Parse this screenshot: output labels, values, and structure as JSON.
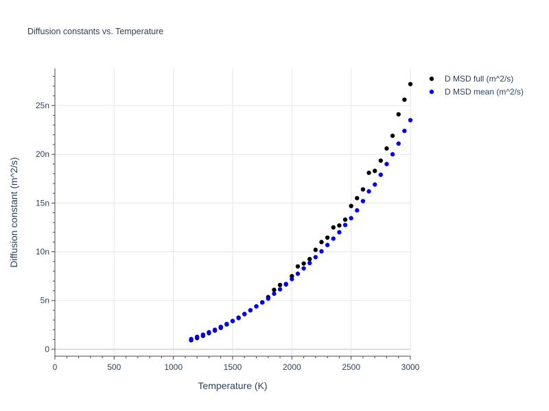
{
  "chart_data": {
    "type": "scatter",
    "title": "Diffusion constants vs. Temperature",
    "xlabel": "Temperature (K)",
    "ylabel": "Diffusion constant (m^2/s)",
    "xlim": [
      0,
      3000
    ],
    "ylim": [
      -7.1e-10,
      2.88e-08
    ],
    "x_ticks": [
      0,
      500,
      1000,
      1500,
      2000,
      2500,
      3000
    ],
    "x_tick_labels": [
      "0",
      "500",
      "1000",
      "1500",
      "2000",
      "2500",
      "3000"
    ],
    "y_ticks": [
      0,
      5e-09,
      1e-08,
      1.5e-08,
      2e-08,
      2.5e-08
    ],
    "y_tick_labels": [
      "0",
      "5n",
      "10n",
      "15n",
      "20n",
      "25n"
    ],
    "grid": true,
    "legend_position": "top-right",
    "series": [
      {
        "name": "D MSD full (m^2/s)",
        "color": "#000000",
        "x": [
          1150,
          1200,
          1250,
          1300,
          1350,
          1400,
          1450,
          1500,
          1550,
          1600,
          1650,
          1700,
          1750,
          1800,
          1850,
          1900,
          1950,
          2000,
          2050,
          2100,
          2150,
          2200,
          2250,
          2300,
          2350,
          2400,
          2450,
          2500,
          2550,
          2600,
          2650,
          2700,
          2750,
          2800,
          2850,
          2900,
          2950,
          3000
        ],
        "y": [
          9.3e-10,
          1.15e-09,
          1.38e-09,
          1.65e-09,
          1.92e-09,
          2.2e-09,
          2.55e-09,
          2.9e-09,
          3.25e-09,
          3.62e-09,
          4e-09,
          4.4e-09,
          4.82e-09,
          5.35e-09,
          6.1e-09,
          6.6e-09,
          6.65e-09,
          7.5e-09,
          8.5e-09,
          8.8e-09,
          9.25e-09,
          1.02e-08,
          1.1e-08,
          1.145e-08,
          1.25e-08,
          1.27e-08,
          1.33e-08,
          1.47e-08,
          1.55e-08,
          1.64e-08,
          1.81e-08,
          1.83e-08,
          1.935e-08,
          2.06e-08,
          2.19e-08,
          2.41e-08,
          2.56e-08,
          2.72e-08
        ]
      },
      {
        "name": "D MSD mean (m^2/s)",
        "color": "#0000ff",
        "x": [
          1150,
          1200,
          1250,
          1300,
          1350,
          1400,
          1450,
          1500,
          1550,
          1600,
          1650,
          1700,
          1750,
          1800,
          1850,
          1900,
          1950,
          2000,
          2050,
          2100,
          2150,
          2200,
          2250,
          2300,
          2350,
          2400,
          2450,
          2500,
          2550,
          2600,
          2650,
          2700,
          2750,
          2800,
          2850,
          2900,
          2950,
          3000
        ],
        "y": [
          1.05e-09,
          1.28e-09,
          1.5e-09,
          1.75e-09,
          2e-09,
          2.3e-09,
          2.6e-09,
          2.9e-09,
          3.2e-09,
          3.6e-09,
          4e-09,
          4.4e-09,
          4.8e-09,
          5.2e-09,
          5.7e-09,
          6.15e-09,
          6.7e-09,
          7.2e-09,
          7.75e-09,
          8.3e-09,
          8.85e-09,
          9.45e-09,
          1.005e-08,
          1.07e-08,
          1.135e-08,
          1.2e-08,
          1.275e-08,
          1.345e-08,
          1.425e-08,
          1.52e-08,
          1.62e-08,
          1.69e-08,
          1.79e-08,
          1.9e-08,
          2e-08,
          2.11e-08,
          2.24e-08,
          2.35e-08
        ]
      }
    ]
  }
}
